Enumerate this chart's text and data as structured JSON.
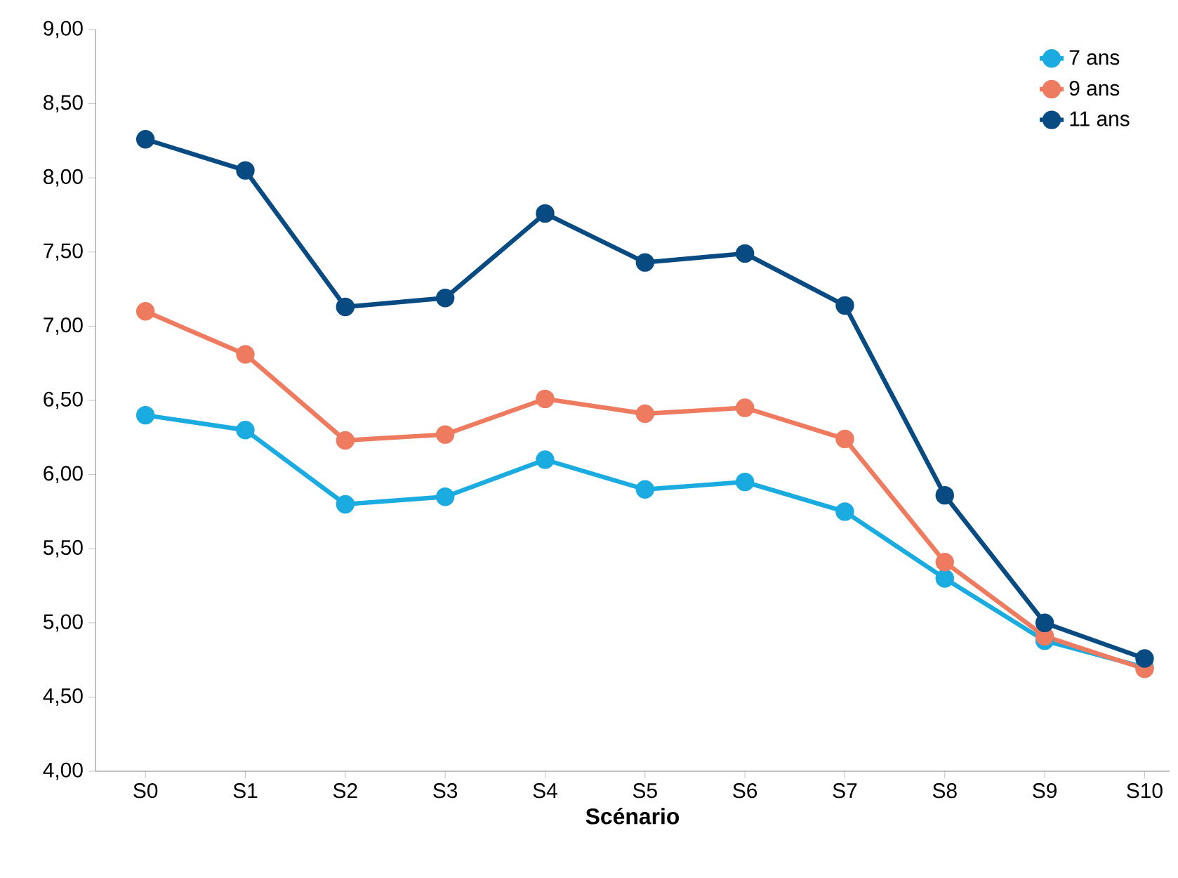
{
  "chart_data": {
    "type": "line",
    "xlabel": "Scénario",
    "categories": [
      "S0",
      "S1",
      "S2",
      "S3",
      "S4",
      "S5",
      "S6",
      "S7",
      "S8",
      "S9",
      "S10"
    ],
    "series": [
      {
        "name": "7 ans",
        "color": "#1aabe0",
        "values": [
          6.4,
          6.3,
          5.8,
          5.85,
          6.1,
          5.9,
          5.95,
          5.75,
          5.3,
          4.88,
          4.7
        ]
      },
      {
        "name": "9 ans",
        "color": "#ee7b5f",
        "values": [
          7.1,
          6.81,
          6.23,
          6.27,
          6.51,
          6.41,
          6.45,
          6.24,
          5.41,
          4.91,
          4.69
        ]
      },
      {
        "name": "11 ans",
        "color": "#074b82",
        "values": [
          8.26,
          8.05,
          7.13,
          7.19,
          7.76,
          7.43,
          7.49,
          7.14,
          5.86,
          5.0,
          4.76
        ]
      }
    ],
    "ylim": [
      4,
      9
    ],
    "yticks": [
      {
        "value": 4,
        "label": "4,00"
      },
      {
        "value": 4.5,
        "label": "4,50"
      },
      {
        "value": 5,
        "label": "5,00"
      },
      {
        "value": 5.5,
        "label": "5,50"
      },
      {
        "value": 6,
        "label": "6,00"
      },
      {
        "value": 6.5,
        "label": "6,50"
      },
      {
        "value": 7,
        "label": "7,00"
      },
      {
        "value": 7.5,
        "label": "7,50"
      },
      {
        "value": 8,
        "label": "8,00"
      },
      {
        "value": 8.5,
        "label": "8,50"
      },
      {
        "value": 9,
        "label": "9,00"
      }
    ],
    "grid": false,
    "legend": "top right",
    "marker": "circle",
    "line_style": "solid"
  }
}
